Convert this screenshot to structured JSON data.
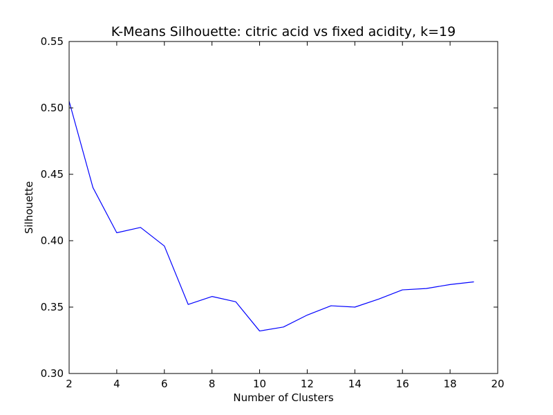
{
  "chart_data": {
    "type": "line",
    "title": "K-Means Silhouette: citric acid vs fixed acidity, k=19",
    "xlabel": "Number of Clusters",
    "ylabel": "Silhouette",
    "xlim": [
      2,
      20
    ],
    "ylim": [
      0.3,
      0.55
    ],
    "xticks": [
      "2",
      "4",
      "6",
      "8",
      "10",
      "12",
      "14",
      "16",
      "18",
      "20"
    ],
    "yticks": [
      "0.30",
      "0.35",
      "0.40",
      "0.45",
      "0.50",
      "0.55"
    ],
    "grid": false,
    "series": [
      {
        "color": "#0000ff",
        "x": [
          2,
          3,
          4,
          5,
          6,
          7,
          8,
          9,
          10,
          11,
          12,
          13,
          14,
          15,
          16,
          17,
          18,
          19
        ],
        "values": [
          0.505,
          0.44,
          0.406,
          0.41,
          0.396,
          0.352,
          0.358,
          0.354,
          0.332,
          0.335,
          0.344,
          0.351,
          0.35,
          0.356,
          0.363,
          0.364,
          0.367,
          0.369
        ]
      }
    ]
  }
}
